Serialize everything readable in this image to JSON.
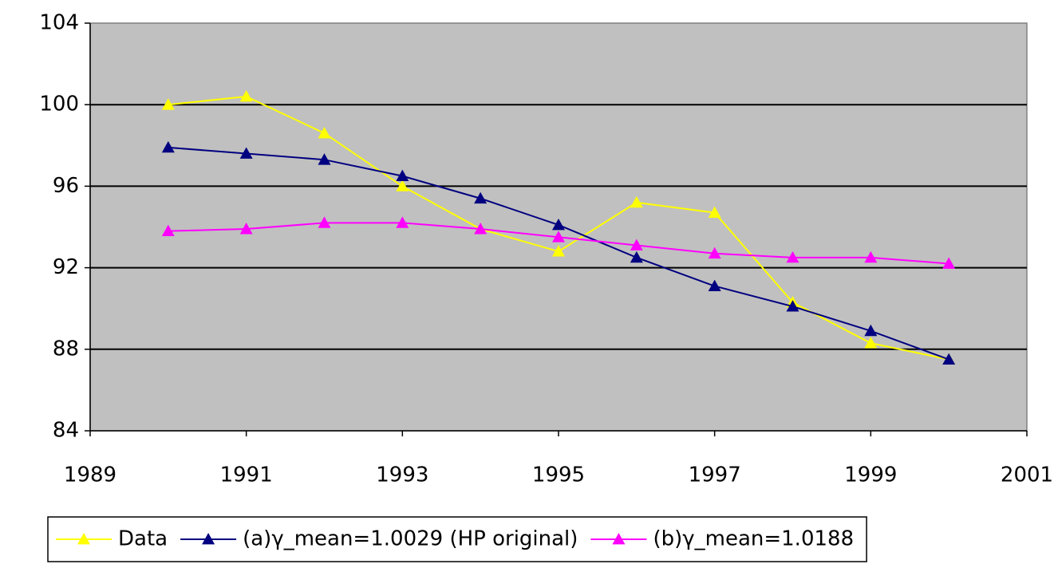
{
  "chart_data": {
    "type": "line",
    "x": [
      1990,
      1991,
      1992,
      1993,
      1994,
      1995,
      1996,
      1997,
      1998,
      1999,
      2000
    ],
    "series": [
      {
        "name": "Data",
        "color": "#ffff00",
        "values": [
          100.0,
          100.4,
          98.6,
          96.0,
          93.9,
          92.8,
          95.2,
          94.7,
          90.3,
          88.3,
          87.5
        ]
      },
      {
        "name": "(a)γ_mean=1.0029 (HP original)",
        "color": "#000080",
        "values": [
          97.9,
          97.6,
          97.3,
          96.5,
          95.4,
          94.1,
          92.5,
          91.1,
          90.1,
          88.9,
          87.5
        ]
      },
      {
        "name": "(b)γ_mean=1.0188",
        "color": "#ff00ff",
        "values": [
          93.8,
          93.9,
          94.2,
          94.2,
          93.9,
          93.5,
          93.1,
          92.7,
          92.5,
          92.5,
          92.2
        ]
      }
    ],
    "xlim": [
      1989,
      2001
    ],
    "xticks": [
      1989,
      1991,
      1993,
      1995,
      1997,
      1999,
      2001
    ],
    "ylim": [
      84,
      104
    ],
    "yticks": [
      84,
      88,
      92,
      96,
      100,
      104
    ],
    "grid": true,
    "plot_background": "#c0c0c0",
    "legend": "bottom"
  }
}
